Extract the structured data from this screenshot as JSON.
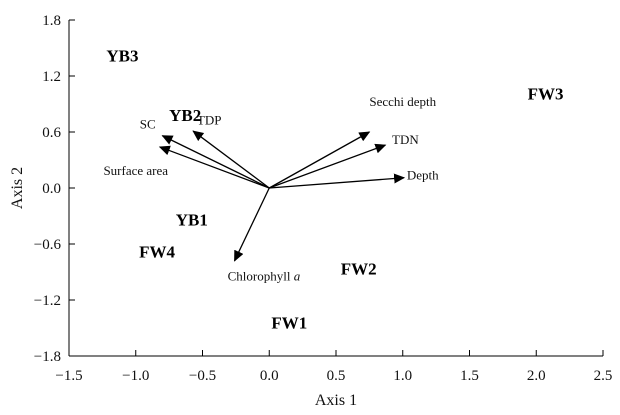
{
  "chart_data": {
    "type": "scatter",
    "title": "",
    "xlabel": "Axis 1",
    "ylabel": "Axis 2",
    "xlim": [
      -1.5,
      2.5
    ],
    "ylim": [
      -1.8,
      1.8
    ],
    "x_ticks": [
      -1.5,
      -1.0,
      -0.5,
      0.0,
      0.5,
      1.0,
      1.5,
      2.0,
      2.5
    ],
    "x_tick_labels": [
      "−1.5",
      "−1.0",
      "−0.5",
      "0.0",
      "0.5",
      "1.0",
      "1.5",
      "2.0",
      "2.5"
    ],
    "y_ticks": [
      -1.8,
      -1.2,
      -0.6,
      0.0,
      0.6,
      1.2,
      1.8
    ],
    "y_tick_labels": [
      "−1.8",
      "−1.2",
      "−0.6",
      "0.0",
      "0.6",
      "1.2",
      "1.8"
    ],
    "grid": false,
    "sites": [
      {
        "label": "YB3",
        "x": -1.1,
        "y": 1.42
      },
      {
        "label": "YB2",
        "x": -0.63,
        "y": 0.78
      },
      {
        "label": "YB1",
        "x": -0.58,
        "y": -0.34
      },
      {
        "label": "FW4",
        "x": -0.84,
        "y": -0.68
      },
      {
        "label": "FW2",
        "x": 0.67,
        "y": -0.86
      },
      {
        "label": "FW1",
        "x": 0.15,
        "y": -1.44
      },
      {
        "label": "FW3",
        "x": 2.07,
        "y": 1.01
      }
    ],
    "vectors": [
      {
        "label": "SC",
        "x": -0.8,
        "y": 0.56,
        "label_x": -0.91,
        "label_y": 0.64
      },
      {
        "label": "TDP",
        "x": -0.57,
        "y": 0.61,
        "label_x": -0.45,
        "label_y": 0.68
      },
      {
        "label": "Surface area",
        "x": -0.82,
        "y": 0.44,
        "label_x": -1.0,
        "label_y": 0.14
      },
      {
        "label": "Secchi depth",
        "x": 0.75,
        "y": 0.6,
        "label_x": 1.0,
        "label_y": 0.88
      },
      {
        "label": "TDN",
        "x": 0.87,
        "y": 0.46,
        "label_x": 1.02,
        "label_y": 0.47
      },
      {
        "label": "Depth",
        "x": 1.01,
        "y": 0.11,
        "label_x": 1.15,
        "label_y": 0.09
      },
      {
        "label": "Chlorophyll a",
        "x": -0.26,
        "y": -0.78,
        "label_x": -0.04,
        "label_y": -0.99
      }
    ]
  }
}
